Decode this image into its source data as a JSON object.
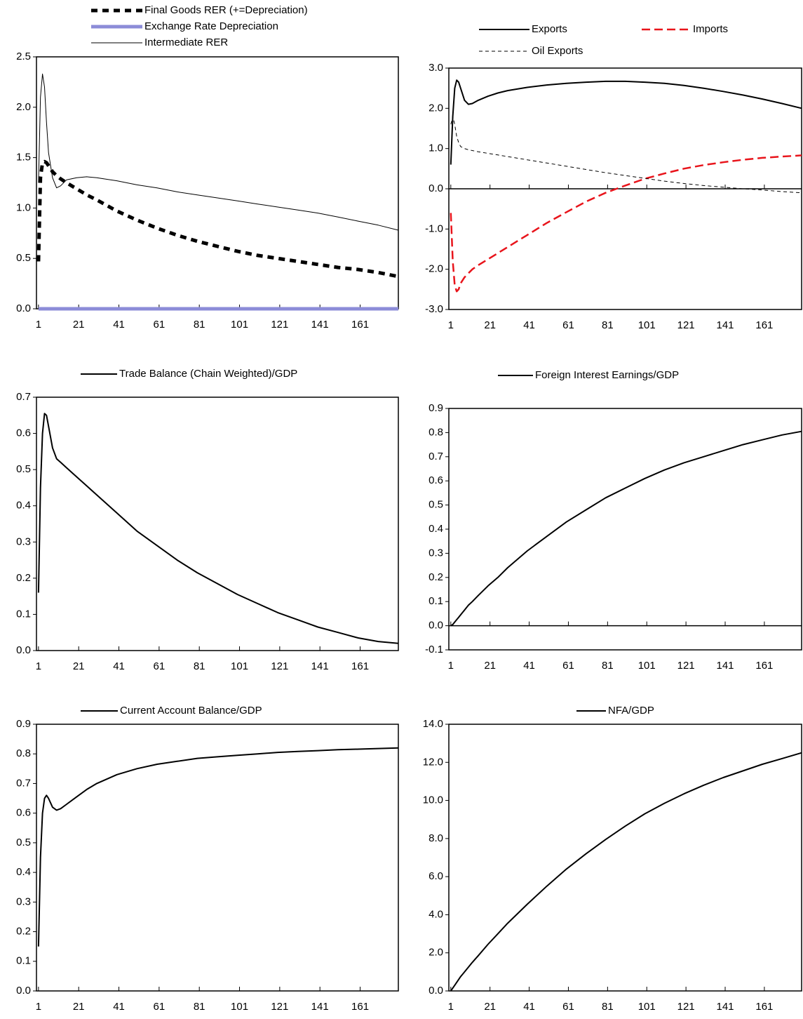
{
  "chart_data": [
    {
      "type": "line",
      "x": [
        1,
        2,
        3,
        4,
        5,
        6,
        8,
        10,
        12,
        15,
        20,
        25,
        30,
        40,
        50,
        60,
        70,
        80,
        90,
        100,
        110,
        120,
        130,
        140,
        150,
        160,
        170,
        180
      ],
      "xlim": [
        0,
        180
      ],
      "xticks": [
        1,
        21,
        41,
        61,
        81,
        101,
        121,
        141,
        161
      ],
      "ylim": [
        0,
        2.5
      ],
      "yticks": [
        {
          "value": 0,
          "label": "0.0"
        },
        0.5,
        {
          "value": 1,
          "label": "1.0"
        },
        1.5,
        {
          "value": 2,
          "label": "2.0"
        },
        2.5
      ],
      "series": [
        {
          "name": "Final Goods RER (+=Depreciation)",
          "color": "#000000",
          "style": "thick-dash",
          "values": [
            0.47,
            1.3,
            1.45,
            1.46,
            1.45,
            1.42,
            1.36,
            1.32,
            1.29,
            1.25,
            1.19,
            1.13,
            1.08,
            0.97,
            0.88,
            0.8,
            0.73,
            0.67,
            0.62,
            0.57,
            0.53,
            0.5,
            0.47,
            0.44,
            0.41,
            0.39,
            0.36,
            0.32
          ]
        },
        {
          "name": "Exchange Rate Depreciation",
          "color": "#8c8cd8",
          "style": "band",
          "values": [
            0,
            0,
            0,
            0,
            0,
            0,
            0,
            0,
            0,
            0,
            0,
            0,
            0,
            0,
            0,
            0,
            0,
            0,
            0,
            0,
            0,
            0,
            0,
            0,
            0,
            0,
            0,
            0
          ]
        },
        {
          "name": "Intermediate RER",
          "color": "#000000",
          "style": "thin",
          "values": [
            1.25,
            2.1,
            2.33,
            2.2,
            1.85,
            1.55,
            1.3,
            1.2,
            1.22,
            1.28,
            1.3,
            1.31,
            1.3,
            1.27,
            1.23,
            1.2,
            1.16,
            1.13,
            1.1,
            1.07,
            1.04,
            1.01,
            0.98,
            0.95,
            0.91,
            0.87,
            0.83,
            0.78
          ]
        }
      ]
    },
    {
      "type": "line",
      "x": [
        1,
        2,
        3,
        4,
        5,
        6,
        8,
        10,
        12,
        15,
        20,
        25,
        30,
        40,
        50,
        60,
        70,
        80,
        90,
        100,
        110,
        120,
        130,
        140,
        150,
        160,
        170,
        180
      ],
      "xlim": [
        0,
        180
      ],
      "xticks": [
        1,
        21,
        41,
        61,
        81,
        101,
        121,
        141,
        161
      ],
      "ylim": [
        -3,
        3
      ],
      "yticks": [
        {
          "value": -3,
          "label": "-3.0"
        },
        {
          "value": -2,
          "label": "-2.0"
        },
        {
          "value": -1,
          "label": "-1.0"
        },
        {
          "value": 0,
          "label": "0.0"
        },
        {
          "value": 1,
          "label": "1.0"
        },
        {
          "value": 2,
          "label": "2.0"
        },
        {
          "value": 3,
          "label": "3.0"
        }
      ],
      "series": [
        {
          "name": "Exports",
          "color": "#000000",
          "style": "solid",
          "values": [
            0.6,
            1.8,
            2.5,
            2.7,
            2.65,
            2.5,
            2.2,
            2.1,
            2.12,
            2.2,
            2.3,
            2.38,
            2.44,
            2.52,
            2.58,
            2.62,
            2.65,
            2.67,
            2.67,
            2.65,
            2.62,
            2.57,
            2.5,
            2.42,
            2.33,
            2.23,
            2.12,
            2.0
          ]
        },
        {
          "name": "Imports",
          "color": "#e8141b",
          "style": "long-dash",
          "values": [
            -0.6,
            -1.8,
            -2.4,
            -2.55,
            -2.5,
            -2.35,
            -2.2,
            -2.1,
            -2.0,
            -1.9,
            -1.75,
            -1.6,
            -1.45,
            -1.15,
            -0.85,
            -0.58,
            -0.32,
            -0.1,
            0.08,
            0.25,
            0.38,
            0.5,
            0.59,
            0.66,
            0.72,
            0.77,
            0.8,
            0.83
          ]
        },
        {
          "name": "Oil Exports",
          "color": "#000000",
          "style": "thin-dash",
          "values": [
            1.6,
            1.8,
            1.6,
            1.3,
            1.15,
            1.05,
            1.0,
            0.97,
            0.95,
            0.92,
            0.88,
            0.84,
            0.8,
            0.72,
            0.64,
            0.56,
            0.48,
            0.4,
            0.33,
            0.26,
            0.19,
            0.13,
            0.08,
            0.04,
            0.0,
            -0.03,
            -0.07,
            -0.1
          ]
        }
      ]
    },
    {
      "type": "line",
      "x": [
        1,
        2,
        3,
        4,
        5,
        6,
        8,
        10,
        12,
        15,
        20,
        25,
        30,
        40,
        50,
        60,
        70,
        80,
        90,
        100,
        110,
        120,
        130,
        140,
        150,
        160,
        170,
        180
      ],
      "xlim": [
        0,
        180
      ],
      "xticks": [
        1,
        21,
        41,
        61,
        81,
        101,
        121,
        141,
        161
      ],
      "ylim": [
        0,
        0.7
      ],
      "yticks": [
        {
          "value": 0,
          "label": "0.0"
        },
        0.1,
        0.2,
        0.3,
        0.4,
        0.5,
        0.6,
        0.7
      ],
      "series": [
        {
          "name": "Trade Balance (Chain Weighted)/GDP",
          "color": "#000000",
          "style": "solid",
          "values": [
            0.16,
            0.45,
            0.6,
            0.655,
            0.65,
            0.62,
            0.56,
            0.53,
            0.52,
            0.505,
            0.48,
            0.455,
            0.43,
            0.38,
            0.33,
            0.29,
            0.25,
            0.215,
            0.185,
            0.155,
            0.13,
            0.105,
            0.085,
            0.065,
            0.05,
            0.035,
            0.025,
            0.02
          ]
        }
      ]
    },
    {
      "type": "line",
      "x": [
        1,
        2,
        3,
        4,
        5,
        6,
        8,
        10,
        12,
        15,
        20,
        25,
        30,
        40,
        50,
        60,
        70,
        80,
        90,
        100,
        110,
        120,
        130,
        140,
        150,
        160,
        170,
        180
      ],
      "xlim": [
        0,
        180
      ],
      "xticks": [
        1,
        21,
        41,
        61,
        81,
        101,
        121,
        141,
        161
      ],
      "ylim": [
        -0.1,
        0.9
      ],
      "yticks": [
        -0.1,
        {
          "value": 0,
          "label": "0.0"
        },
        0.1,
        0.2,
        0.3,
        0.4,
        0.5,
        0.6,
        0.7,
        0.8,
        0.9
      ],
      "series": [
        {
          "name": "Foreign Interest Earnings/GDP",
          "color": "#000000",
          "style": "solid",
          "values": [
            0,
            0.005,
            0.015,
            0.025,
            0.035,
            0.045,
            0.065,
            0.085,
            0.1,
            0.125,
            0.165,
            0.2,
            0.24,
            0.31,
            0.37,
            0.43,
            0.48,
            0.53,
            0.57,
            0.61,
            0.645,
            0.675,
            0.7,
            0.725,
            0.75,
            0.77,
            0.79,
            0.805
          ]
        }
      ]
    },
    {
      "type": "line",
      "x": [
        1,
        2,
        3,
        4,
        5,
        6,
        8,
        10,
        12,
        15,
        20,
        25,
        30,
        40,
        50,
        60,
        70,
        80,
        90,
        100,
        110,
        120,
        130,
        140,
        150,
        160,
        170,
        180
      ],
      "xlim": [
        0,
        180
      ],
      "xticks": [
        1,
        21,
        41,
        61,
        81,
        101,
        121,
        141,
        161
      ],
      "ylim": [
        0,
        0.9
      ],
      "yticks": [
        {
          "value": 0,
          "label": "0.0"
        },
        0.1,
        0.2,
        0.3,
        0.4,
        0.5,
        0.6,
        0.7,
        0.8,
        0.9
      ],
      "series": [
        {
          "name": "Current Account Balance/GDP",
          "color": "#000000",
          "style": "solid",
          "values": [
            0.15,
            0.45,
            0.6,
            0.65,
            0.66,
            0.65,
            0.62,
            0.61,
            0.615,
            0.63,
            0.655,
            0.68,
            0.7,
            0.73,
            0.75,
            0.765,
            0.775,
            0.785,
            0.79,
            0.795,
            0.8,
            0.805,
            0.808,
            0.811,
            0.814,
            0.816,
            0.818,
            0.82
          ]
        }
      ]
    },
    {
      "type": "line",
      "x": [
        1,
        2,
        3,
        4,
        5,
        6,
        8,
        10,
        12,
        15,
        20,
        25,
        30,
        40,
        50,
        60,
        70,
        80,
        90,
        100,
        110,
        120,
        130,
        140,
        150,
        160,
        170,
        180
      ],
      "xlim": [
        0,
        180
      ],
      "xticks": [
        1,
        21,
        41,
        61,
        81,
        101,
        121,
        141,
        161
      ],
      "ylim": [
        0,
        14
      ],
      "yticks": [
        {
          "value": 0,
          "label": "0.0"
        },
        {
          "value": 2,
          "label": "2.0"
        },
        {
          "value": 4,
          "label": "4.0"
        },
        {
          "value": 6,
          "label": "6.0"
        },
        {
          "value": 8,
          "label": "8.0"
        },
        {
          "value": 10,
          "label": "10.0"
        },
        {
          "value": 12,
          "label": "12.0"
        },
        {
          "value": 14,
          "label": "14.0"
        }
      ],
      "series": [
        {
          "name": "NFA/GDP",
          "color": "#000000",
          "style": "solid",
          "values": [
            0,
            0.15,
            0.3,
            0.45,
            0.6,
            0.75,
            1.0,
            1.25,
            1.5,
            1.85,
            2.45,
            3.0,
            3.55,
            4.55,
            5.5,
            6.4,
            7.2,
            7.95,
            8.65,
            9.3,
            9.85,
            10.35,
            10.8,
            11.2,
            11.55,
            11.9,
            12.2,
            12.5
          ]
        }
      ]
    }
  ]
}
